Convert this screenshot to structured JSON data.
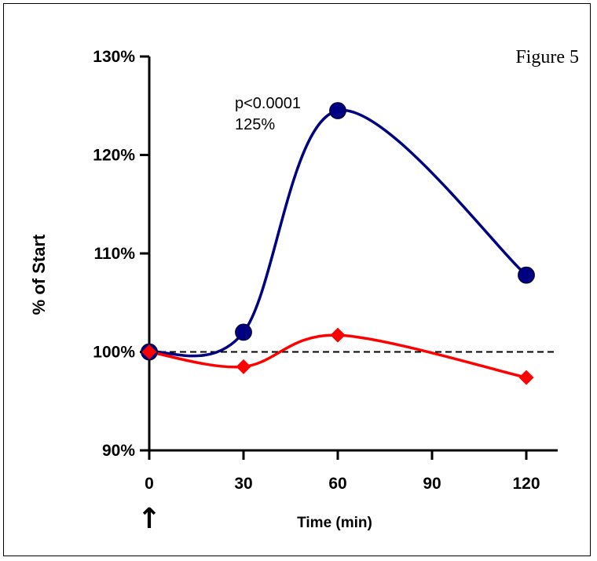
{
  "chart_data": {
    "type": "line",
    "title": "Figure 5",
    "xlabel": "Time (min)",
    "ylabel": "% of Start",
    "x": [
      0,
      30,
      60,
      120
    ],
    "xticks": [
      "0",
      "30",
      "60",
      "90",
      "120"
    ],
    "xtick_values": [
      0,
      30,
      60,
      90,
      120
    ],
    "xlim": [
      0,
      130
    ],
    "yticks": [
      "90%",
      "100%",
      "110%",
      "120%",
      "130%"
    ],
    "ytick_values": [
      90,
      100,
      110,
      120,
      130
    ],
    "ylim": [
      90,
      130
    ],
    "reference_line": {
      "y": 100,
      "style": "dashed"
    },
    "series": [
      {
        "color": "#000080",
        "marker": "circle",
        "values": [
          100,
          102,
          124.5,
          107.8
        ]
      },
      {
        "color": "#ff0000",
        "marker": "diamond",
        "values": [
          100,
          98.5,
          101.7,
          97.4
        ]
      }
    ],
    "annotations": [
      {
        "text": "p<0.0001",
        "x": 60,
        "y": 124.5
      },
      {
        "text": "125%",
        "x": 60,
        "y": 124.5
      }
    ],
    "start_marker": "↑",
    "grid": false,
    "legend": "none"
  }
}
